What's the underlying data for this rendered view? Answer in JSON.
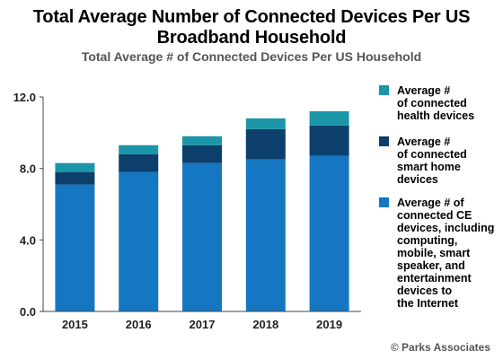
{
  "chart_data": {
    "type": "bar",
    "stacked": true,
    "title": "Total Average Number of Connected Devices Per US Broadband Household",
    "subtitle": "Total Average # of Connected Devices Per US Household",
    "categories": [
      "2015",
      "2016",
      "2017",
      "2018",
      "2019"
    ],
    "series": [
      {
        "name": "Average # of connected CE devices, including computing, mobile, smart speaker, and entertainment devices to the Internet",
        "color": "#1577c2",
        "values": [
          7.1,
          7.8,
          8.3,
          8.5,
          8.7
        ]
      },
      {
        "name": "Average # of connected smart home devices",
        "color": "#0c3f6b",
        "values": [
          0.7,
          1.0,
          1.0,
          1.7,
          1.7
        ]
      },
      {
        "name": "Average # of connected health devices",
        "color": "#1a96a8",
        "values": [
          0.5,
          0.5,
          0.5,
          0.6,
          0.8
        ]
      }
    ],
    "yticks": [
      "0.0",
      "4.0",
      "8.0",
      "12.0"
    ],
    "ylim": [
      0,
      12
    ],
    "legend_position": "right",
    "grid": false
  },
  "legend": [
    {
      "label": "Average #\nof connected\nhealth devices",
      "color": "#1a96a8"
    },
    {
      "label": "Average #\nof connected\nsmart home\ndevices",
      "color": "#0c3f6b"
    },
    {
      "label": "Average # of\nconnected CE\ndevices, including\ncomputing,\nmobile, smart\nspeaker, and\nentertainment\ndevices to\nthe Internet",
      "color": "#1577c2"
    }
  ],
  "footer": "© Parks Associates"
}
